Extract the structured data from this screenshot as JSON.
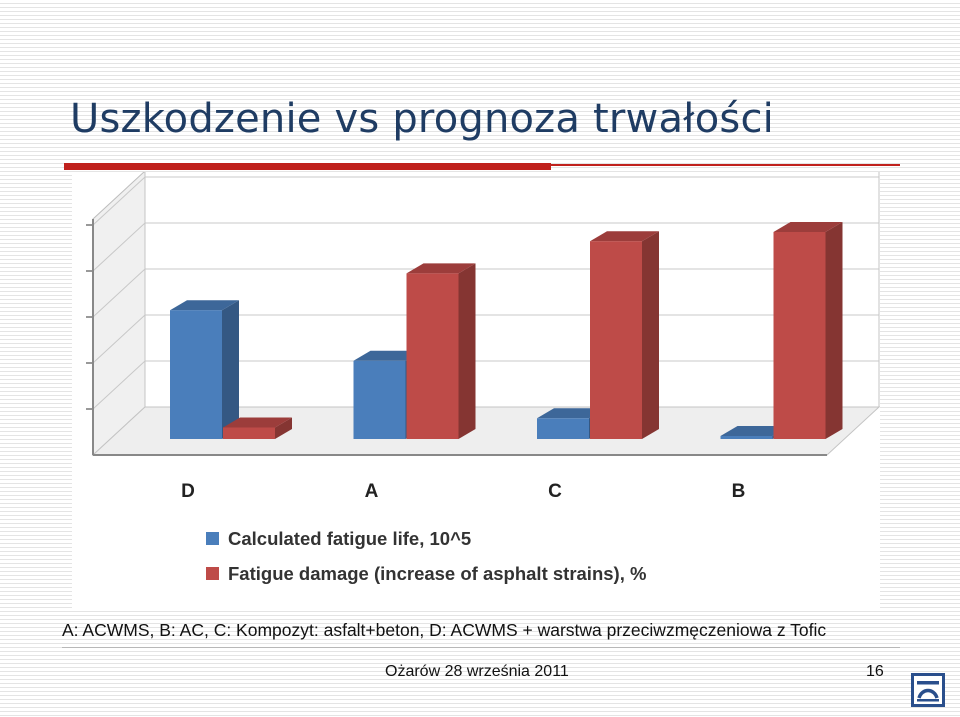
{
  "slide": {
    "title": "Uszkodzenie vs prognoza trwałości",
    "caption": "A: ACWMS, B: AC, C: Kompozyt: asfalt+beton, D: ACWMS + warstwa przeciwzmęczeniowa z Tofic",
    "footer": "Ożarów 28 września 2011",
    "page_number": "16",
    "accent_color": "#c0211d",
    "title_color": "#1f3c63",
    "logo_icon": "tofic-logo"
  },
  "chart_data": {
    "type": "bar",
    "categories": [
      "D",
      "A",
      "C",
      "B"
    ],
    "series": [
      {
        "name": "Calculated fatigue life, 10^5",
        "values": [
          2.8,
          1.7,
          0.45,
          0.05
        ],
        "color": "#4a7ebb"
      },
      {
        "name": "Fatigue damage (increase of asphalt strains), %",
        "values": [
          0.25,
          3.6,
          4.3,
          4.5
        ],
        "color": "#be4b48"
      }
    ],
    "ylim": [
      0,
      5
    ],
    "grid": true,
    "legend": "bottom"
  }
}
